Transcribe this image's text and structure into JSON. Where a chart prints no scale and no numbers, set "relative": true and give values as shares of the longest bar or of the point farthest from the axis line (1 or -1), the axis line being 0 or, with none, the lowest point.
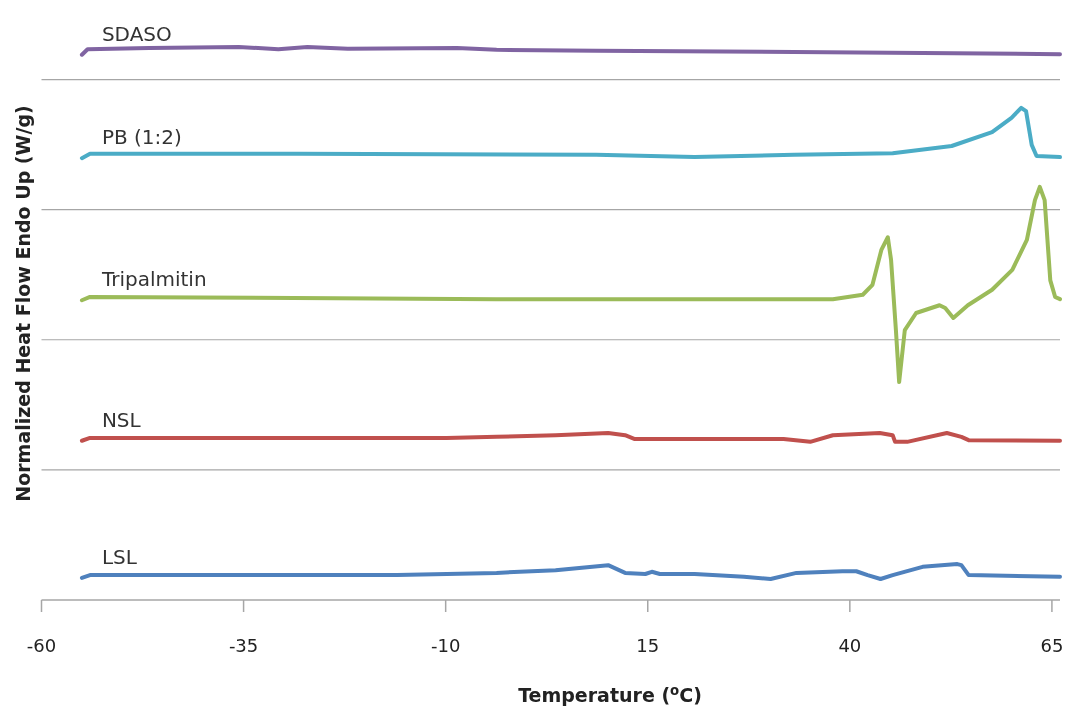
{
  "chart_data": {
    "type": "line",
    "xlabel": "Temperature ($^{o}$C)",
    "ylabel": "Normalized Heat Flow Endo Up (W/g)",
    "relative": true,
    "xlim": [
      -60,
      66
    ],
    "xticks": [
      -60,
      -35,
      -10,
      15,
      40,
      65
    ],
    "grid": "y",
    "legend": false,
    "line_style": "solid",
    "marker": "none",
    "series": [
      {
        "name": "SDASO",
        "color": "#8064a2",
        "x": [
          -55.0,
          -54.3,
          -46.7,
          -35.6,
          -30.7,
          -27.1,
          -22.1,
          -8.6,
          -3.7,
          8.6,
          33.1,
          66
        ],
        "values": [
          0.986,
          0.996,
          0.998,
          1,
          0.996,
          1,
          0.997,
          0.998,
          0.995,
          0.993,
          0.991,
          0.987
        ]
      },
      {
        "name": "PB (1:2)",
        "color": "#4bacc6",
        "x": [
          -55.0,
          -54.0,
          -28.3,
          8.6,
          20.8,
          33.1,
          45.3,
          52.6,
          57.6,
          60.0,
          61.2,
          61.8,
          62.5,
          63.1,
          66
        ],
        "values": [
          0.799,
          0.807,
          0.807,
          0.805,
          0.801,
          0.805,
          0.808,
          0.821,
          0.846,
          0.872,
          0.89,
          0.884,
          0.823,
          0.803,
          0.801
        ]
      },
      {
        "name": "Tripalmitin",
        "color": "#9bbb59",
        "x": [
          -55.0,
          -54.0,
          -3.7,
          37.9,
          41.6,
          42.8,
          43.9,
          44.7,
          45.1,
          45.7,
          46.1,
          46.8,
          48.2,
          51.1,
          51.8,
          52.8,
          54.6,
          57.6,
          60.1,
          61.9,
          62.9,
          63.5,
          64.1,
          64.8,
          65.4,
          66
        ],
        "values": [
          0.542,
          0.548,
          0.544,
          0.544,
          0.552,
          0.57,
          0.633,
          0.656,
          0.615,
          0.488,
          0.394,
          0.488,
          0.519,
          0.533,
          0.528,
          0.51,
          0.533,
          0.561,
          0.597,
          0.651,
          0.723,
          0.747,
          0.723,
          0.578,
          0.548,
          0.544
        ]
      },
      {
        "name": "NSL",
        "color": "#c0504d",
        "x": [
          -55.0,
          -54.0,
          -9.9,
          -3.7,
          3.6,
          10.1,
          12.2,
          13.4,
          16.2,
          20.8,
          31.8,
          35.1,
          37.9,
          43.7,
          45.3,
          45.6,
          47.1,
          52.0,
          53.8,
          54.7,
          66
        ],
        "values": [
          0.288,
          0.293,
          0.293,
          0.295,
          0.298,
          0.302,
          0.298,
          0.291,
          0.291,
          0.291,
          0.291,
          0.286,
          0.298,
          0.302,
          0.298,
          0.286,
          0.286,
          0.302,
          0.295,
          0.289,
          0.288
        ]
      },
      {
        "name": "LSL",
        "color": "#4f81bd",
        "x": [
          -55.0,
          -54.0,
          -16.0,
          -3.7,
          3.6,
          10.1,
          12.2,
          14.7,
          15.5,
          16.5,
          20.8,
          26.9,
          30.2,
          33.4,
          39.1,
          40.8,
          42.2,
          43.8,
          45.3,
          49.0,
          53.3,
          53.8,
          54.7,
          66
        ],
        "values": [
          0.04,
          0.045,
          0.045,
          0.049,
          0.054,
          0.063,
          0.049,
          0.047,
          0.051,
          0.047,
          0.047,
          0.042,
          0.038,
          0.049,
          0.052,
          0.052,
          0.045,
          0.038,
          0.045,
          0.06,
          0.065,
          0.063,
          0.045,
          0.042
        ]
      }
    ]
  }
}
